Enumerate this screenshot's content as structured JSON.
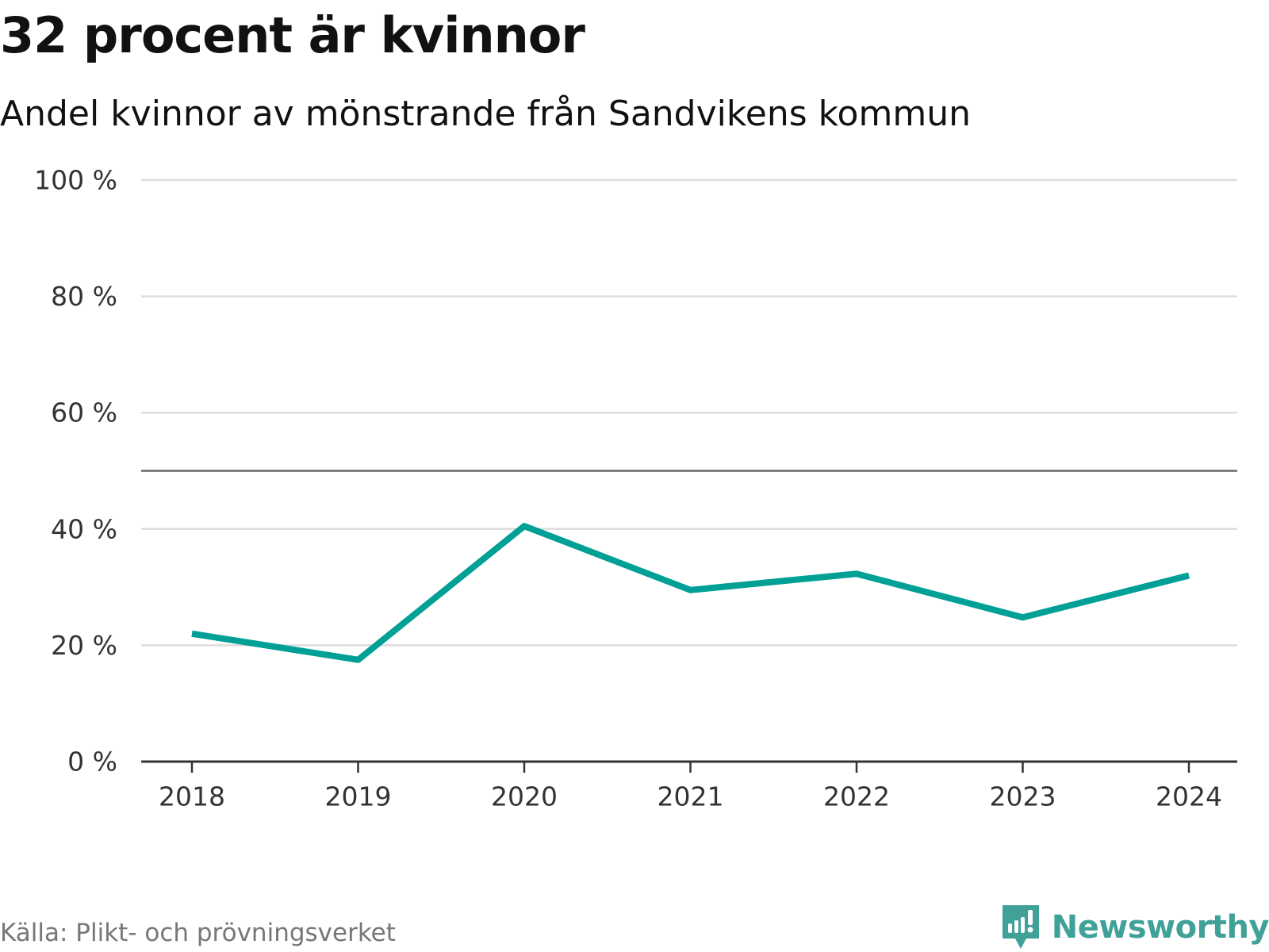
{
  "chart_data": {
    "type": "line",
    "title": "32 procent är kvinnor",
    "subtitle": "Andel kvinnor av mönstrande från Sandvikens kommun",
    "categories": [
      "2018",
      "2019",
      "2020",
      "2021",
      "2022",
      "2023",
      "2024"
    ],
    "series": [
      {
        "name": "Andel kvinnor",
        "values": [
          22.0,
          17.5,
          40.5,
          29.5,
          32.3,
          24.8,
          32.0
        ],
        "color": "#00a096"
      }
    ],
    "ylim": [
      0,
      100
    ],
    "yticks": [
      0,
      20,
      40,
      60,
      80,
      100
    ],
    "ytick_labels": [
      "0 %",
      "20 %",
      "40 %",
      "60 %",
      "80 %",
      "100 %"
    ],
    "reference_line": 50,
    "grid": true,
    "xlabel": "",
    "ylabel": "",
    "source": "Källa: Plikt- och prövningsverket"
  },
  "colors": {
    "line": "#00a096",
    "grid": "#dddddd",
    "reference": "#666666",
    "axis": "#333333",
    "brand": "#3fa198"
  },
  "brand": {
    "name": "Newsworthy",
    "icon": "newsworthy-logo-icon"
  }
}
